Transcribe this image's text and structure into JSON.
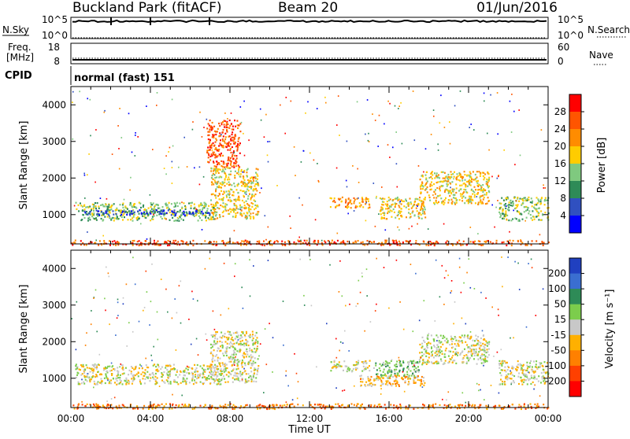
{
  "header": {
    "title": "Buckland Park (fitACF)",
    "beam": "Beam 20",
    "date": "01/Jun/2016"
  },
  "status_panels": {
    "nsky_label": "N.Sky",
    "nsearch_label": "N.Search",
    "noise_ticks": [
      "10^5",
      "10^0"
    ],
    "freq_label_line1": "Freq.",
    "freq_label_line2": "[MHz]",
    "freq_ticks": [
      "18",
      "8"
    ],
    "nave_label": "Nave",
    "nave_ticks": [
      "60",
      "0"
    ],
    "cpid_label": "CPID",
    "cpid_text": "normal (fast) 151"
  },
  "chart_data": [
    {
      "type": "heatmap",
      "name": "power",
      "ylabel": "Slant Range [km]",
      "xlabel": "",
      "yticks": [
        "1000",
        "2000",
        "3000",
        "4000"
      ],
      "ylim": [
        200,
        4500
      ],
      "xlim": [
        0,
        24
      ],
      "colorbar": {
        "label": "Power [dB]",
        "ticks": [
          "28",
          "24",
          "20",
          "16",
          "12",
          "8",
          "4"
        ],
        "colors": [
          "#ff0000",
          "#ff5500",
          "#ff8c00",
          "#ffcc00",
          "#7fc97f",
          "#2e8b57",
          "#3050c0",
          "#0000ff"
        ]
      },
      "regions": [
        {
          "t0": 0.2,
          "t1": 7.3,
          "r0": 850,
          "r1": 1350,
          "level": 4
        },
        {
          "t0": 0.5,
          "t1": 7.0,
          "r0": 1000,
          "r1": 1150,
          "level": 6
        },
        {
          "t0": 7.0,
          "t1": 9.4,
          "r0": 900,
          "r1": 2300,
          "level": 3
        },
        {
          "t0": 6.8,
          "t1": 8.5,
          "r0": 2300,
          "r1": 3600,
          "level": 1
        },
        {
          "t0": 13.0,
          "t1": 15.0,
          "r0": 1200,
          "r1": 1500,
          "level": 2
        },
        {
          "t0": 15.5,
          "t1": 17.8,
          "r0": 900,
          "r1": 1500,
          "level": 3
        },
        {
          "t0": 17.5,
          "t1": 21.0,
          "r0": 1300,
          "r1": 2200,
          "level": 3
        },
        {
          "t0": 21.5,
          "t1": 24.0,
          "r0": 850,
          "r1": 1500,
          "level": 4
        },
        {
          "t0": 0.0,
          "t1": 24.0,
          "r0": 180,
          "r1": 320,
          "level": 1
        }
      ]
    },
    {
      "type": "heatmap",
      "name": "velocity",
      "ylabel": "Slant Range [km]",
      "xlabel": "Time UT",
      "xticks": [
        "00:00",
        "04:00",
        "08:00",
        "12:00",
        "16:00",
        "20:00",
        "00:00"
      ],
      "yticks": [
        "1000",
        "2000",
        "3000",
        "4000"
      ],
      "ylim": [
        200,
        4500
      ],
      "xlim": [
        0,
        24
      ],
      "colorbar": {
        "label": "Velocity [m s⁻¹]",
        "ticks": [
          "200",
          "100",
          "50",
          "15",
          "-15",
          "-50",
          "-100",
          "-200"
        ],
        "colors": [
          "#2040c0",
          "#3a6ed0",
          "#2e8b57",
          "#7ccd4c",
          "#c8c8c8",
          "#ffb000",
          "#ff8000",
          "#ff4000",
          "#ff0000"
        ]
      },
      "regions": [
        {
          "t0": 0.2,
          "t1": 7.5,
          "r0": 850,
          "r1": 1400,
          "level": 4
        },
        {
          "t0": 7.0,
          "t1": 9.4,
          "r0": 900,
          "r1": 2300,
          "level": 4
        },
        {
          "t0": 13.0,
          "t1": 15.0,
          "r0": 1200,
          "r1": 1500,
          "level": 4
        },
        {
          "t0": 15.2,
          "t1": 17.5,
          "r0": 1000,
          "r1": 1500,
          "level": 3
        },
        {
          "t0": 17.5,
          "t1": 21.0,
          "r0": 1400,
          "r1": 2200,
          "level": 4
        },
        {
          "t0": 14.5,
          "t1": 17.8,
          "r0": 800,
          "r1": 1100,
          "level": 5
        },
        {
          "t0": 21.5,
          "t1": 24.0,
          "r0": 850,
          "r1": 1500,
          "level": 4
        },
        {
          "t0": 0.0,
          "t1": 24.0,
          "r0": 180,
          "r1": 320,
          "level": 6
        }
      ]
    }
  ]
}
